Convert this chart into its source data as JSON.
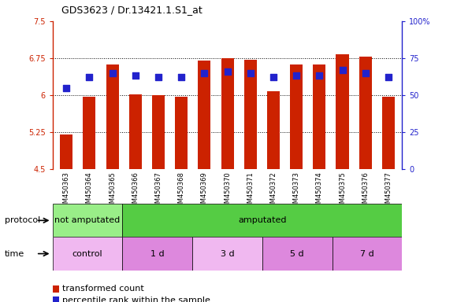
{
  "title": "GDS3623 / Dr.13421.1.S1_at",
  "samples": [
    "GSM450363",
    "GSM450364",
    "GSM450365",
    "GSM450366",
    "GSM450367",
    "GSM450368",
    "GSM450369",
    "GSM450370",
    "GSM450371",
    "GSM450372",
    "GSM450373",
    "GSM450374",
    "GSM450375",
    "GSM450376",
    "GSM450377"
  ],
  "red_values": [
    5.2,
    5.97,
    6.62,
    6.02,
    6.0,
    5.97,
    6.7,
    6.75,
    6.72,
    6.08,
    6.62,
    6.62,
    6.83,
    6.78,
    5.97
  ],
  "blue_values": [
    55,
    62,
    65,
    63,
    62,
    62,
    65,
    66,
    65,
    62,
    63,
    63,
    67,
    65,
    62
  ],
  "ylim_left": [
    4.5,
    7.5
  ],
  "ylim_right": [
    0,
    100
  ],
  "yticks_left": [
    4.5,
    5.25,
    6.0,
    6.75,
    7.5
  ],
  "yticks_right": [
    0,
    25,
    50,
    75,
    100
  ],
  "ytick_labels_left": [
    "4.5",
    "5.25",
    "6",
    "6.75",
    "7.5"
  ],
  "ytick_labels_right": [
    "0",
    "25",
    "50",
    "75",
    "100%"
  ],
  "hgrid_lines": [
    5.25,
    6.0,
    6.75
  ],
  "protocol_groups": [
    {
      "label": "not amputated",
      "start": 0,
      "end": 3,
      "color": "#99ee88"
    },
    {
      "label": "amputated",
      "start": 3,
      "end": 15,
      "color": "#55cc44"
    }
  ],
  "time_groups": [
    {
      "label": "control",
      "start": 0,
      "end": 3,
      "color": "#f0b8f0"
    },
    {
      "label": "1 d",
      "start": 3,
      "end": 6,
      "color": "#dd88dd"
    },
    {
      "label": "3 d",
      "start": 6,
      "end": 9,
      "color": "#f0b8f0"
    },
    {
      "label": "5 d",
      "start": 9,
      "end": 12,
      "color": "#dd88dd"
    },
    {
      "label": "7 d",
      "start": 12,
      "end": 15,
      "color": "#dd88dd"
    }
  ],
  "bar_color": "#cc2200",
  "dot_color": "#2222cc",
  "bar_bottom": 4.5,
  "bar_width": 0.55,
  "dot_size": 35,
  "plot_bg_color": "#ffffff",
  "xtick_bg_color": "#cccccc",
  "legend_red_label": "transformed count",
  "legend_blue_label": "percentile rank within the sample",
  "protocol_label": "protocol",
  "time_label": "time",
  "title_fontsize": 9,
  "axis_fontsize": 8,
  "label_fontsize": 8,
  "tick_fontsize": 7
}
